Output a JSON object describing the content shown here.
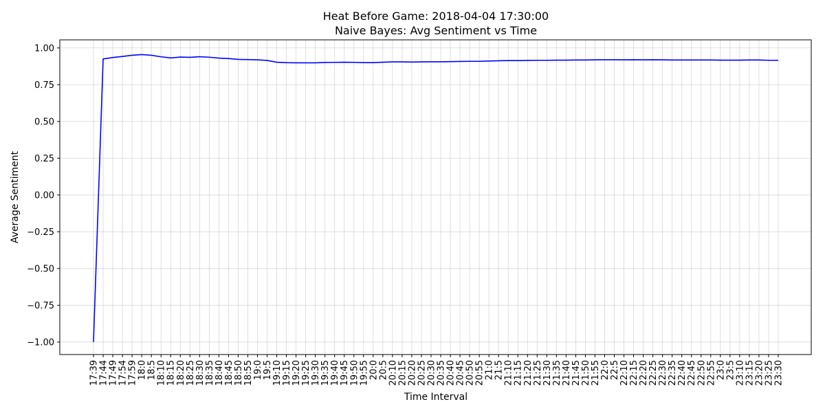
{
  "chart_data": {
    "type": "line",
    "title_line1": "Heat Before Game: 2018-04-04 17:30:00",
    "title_line2": "Naive Bayes: Avg Sentiment vs Time",
    "xlabel": "Time Interval",
    "ylabel": "Average Sentiment",
    "ylim": [
      -1.085,
      1.055
    ],
    "yticks": [
      -1.0,
      -0.75,
      -0.5,
      -0.25,
      0.0,
      0.25,
      0.5,
      0.75,
      1.0
    ],
    "ytick_labels": [
      "−1.00",
      "−0.75",
      "−0.50",
      "−0.25",
      "0.00",
      "0.25",
      "0.50",
      "0.75",
      "1.00"
    ],
    "grid": true,
    "line_color": "#0000ff",
    "categories": [
      "17:39",
      "17:44",
      "17:49",
      "17:54",
      "17:59",
      "18:0",
      "18:5",
      "18:10",
      "18:15",
      "18:20",
      "18:25",
      "18:30",
      "18:35",
      "18:40",
      "18:45",
      "18:50",
      "18:55",
      "19:0",
      "19:5",
      "19:10",
      "19:15",
      "19:20",
      "19:25",
      "19:30",
      "19:35",
      "19:40",
      "19:45",
      "19:50",
      "19:55",
      "20:0",
      "20:5",
      "20:10",
      "20:15",
      "20:20",
      "20:25",
      "20:30",
      "20:35",
      "20:40",
      "20:45",
      "20:50",
      "20:55",
      "21:0",
      "21:5",
      "21:10",
      "21:15",
      "21:20",
      "21:25",
      "21:30",
      "21:35",
      "21:40",
      "21:45",
      "21:50",
      "21:55",
      "22:0",
      "22:5",
      "22:10",
      "22:15",
      "22:20",
      "22:25",
      "22:30",
      "22:35",
      "22:40",
      "22:45",
      "22:50",
      "22:55",
      "23:0",
      "23:5",
      "23:10",
      "23:15",
      "23:20",
      "23:25",
      "23:30"
    ],
    "values": [
      -1.0,
      0.925,
      0.935,
      0.942,
      0.95,
      0.955,
      0.95,
      0.94,
      0.932,
      0.938,
      0.936,
      0.94,
      0.937,
      0.931,
      0.928,
      0.922,
      0.921,
      0.919,
      0.915,
      0.903,
      0.9,
      0.899,
      0.899,
      0.899,
      0.901,
      0.902,
      0.903,
      0.902,
      0.9,
      0.9,
      0.903,
      0.905,
      0.905,
      0.904,
      0.905,
      0.906,
      0.906,
      0.907,
      0.908,
      0.909,
      0.909,
      0.911,
      0.913,
      0.914,
      0.914,
      0.915,
      0.916,
      0.916,
      0.917,
      0.917,
      0.918,
      0.918,
      0.919,
      0.92,
      0.92,
      0.919,
      0.92,
      0.919,
      0.92,
      0.919,
      0.918,
      0.918,
      0.918,
      0.918,
      0.918,
      0.917,
      0.917,
      0.917,
      0.918,
      0.918,
      0.916,
      0.916
    ]
  }
}
